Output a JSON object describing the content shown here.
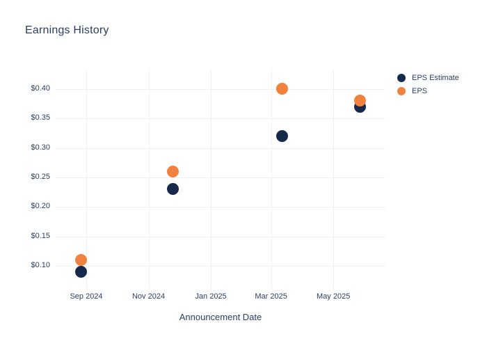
{
  "chart_data": {
    "type": "scatter",
    "title": "Earnings History",
    "xlabel": "Announcement Date",
    "ylabel": "",
    "grid": true,
    "legend_position": "top-right",
    "x_ticks": [
      {
        "value": "2024-09-01",
        "label": "Sep 2024"
      },
      {
        "value": "2024-11-01",
        "label": "Nov 2024"
      },
      {
        "value": "2025-01-01",
        "label": "Jan 2025"
      },
      {
        "value": "2025-03-01",
        "label": "Mar 2025"
      },
      {
        "value": "2025-05-01",
        "label": "May 2025"
      }
    ],
    "y_ticks": [
      {
        "value": 0.1,
        "label": "$0.10"
      },
      {
        "value": 0.15,
        "label": "$0.15"
      },
      {
        "value": 0.2,
        "label": "$0.20"
      },
      {
        "value": 0.25,
        "label": "$0.25"
      },
      {
        "value": 0.3,
        "label": "$0.30"
      },
      {
        "value": 0.35,
        "label": "$0.35"
      },
      {
        "value": 0.4,
        "label": "$0.40"
      }
    ],
    "xlim": [
      "2024-08-02",
      "2025-06-21"
    ],
    "ylim": [
      0.061,
      0.433
    ],
    "series": [
      {
        "name": "EPS Estimate",
        "color": "#15294b",
        "points": [
          {
            "x": "2024-08-27",
            "y": 0.09
          },
          {
            "x": "2024-11-25",
            "y": 0.23
          },
          {
            "x": "2025-03-12",
            "y": 0.32
          },
          {
            "x": "2025-05-27",
            "y": 0.37
          }
        ]
      },
      {
        "name": "EPS",
        "color": "#f0813f",
        "points": [
          {
            "x": "2024-08-27",
            "y": 0.11
          },
          {
            "x": "2024-11-25",
            "y": 0.26
          },
          {
            "x": "2025-03-12",
            "y": 0.4
          },
          {
            "x": "2025-05-27",
            "y": 0.38
          }
        ]
      }
    ],
    "marker_diameter_px": 17,
    "colors": {
      "text": "#2a3f5f",
      "grid": "#edf0f7",
      "background": "#ffffff"
    }
  }
}
